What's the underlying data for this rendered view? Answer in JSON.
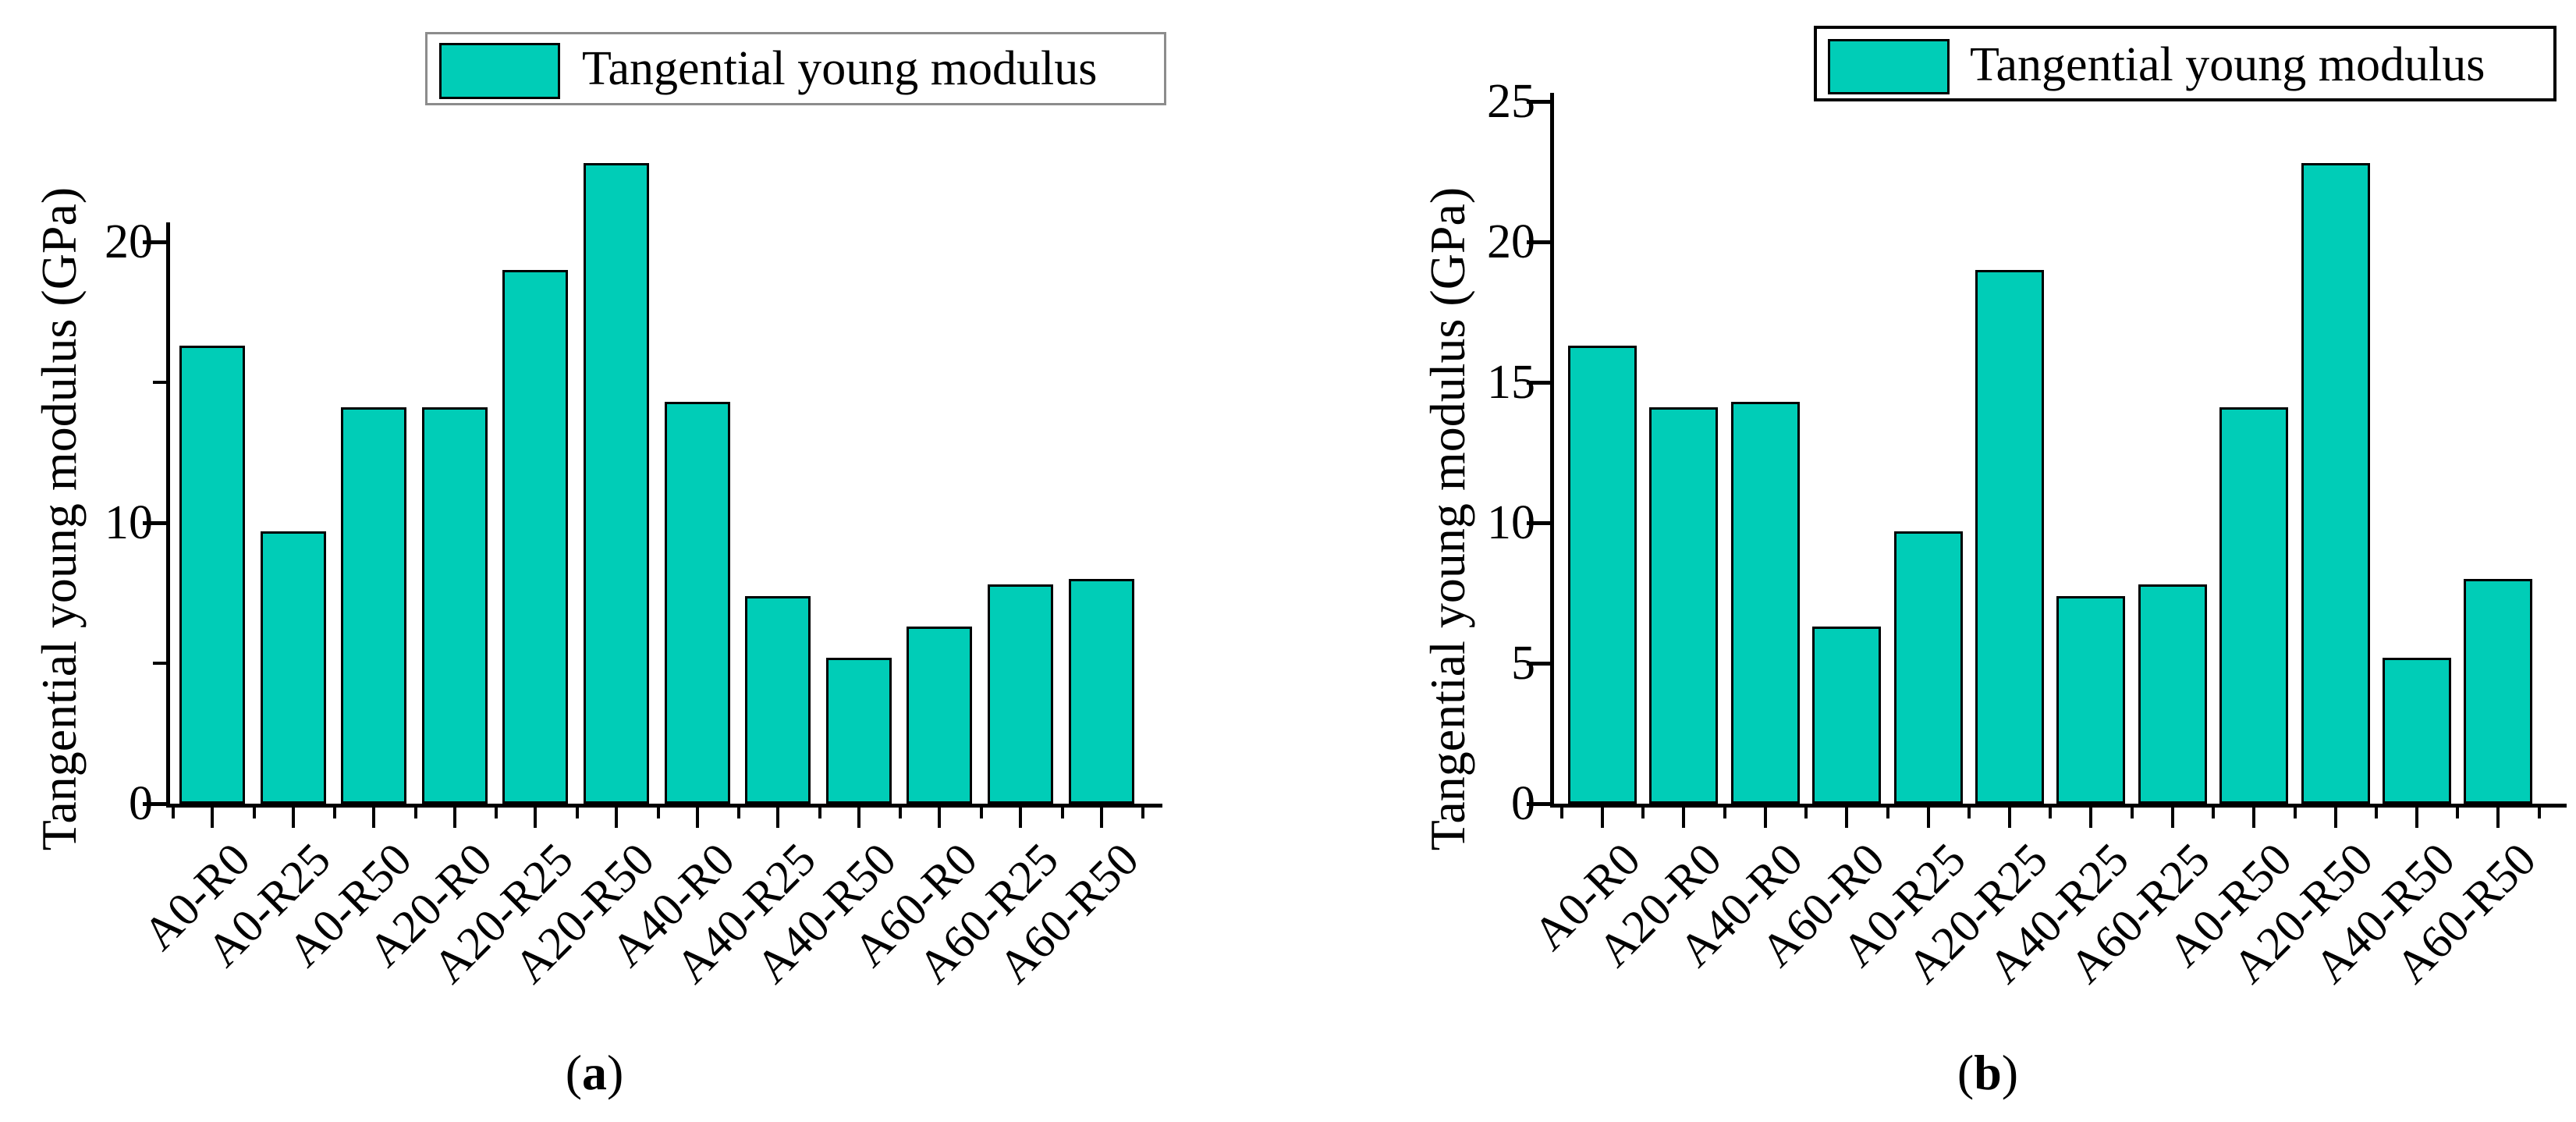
{
  "figure": {
    "background": "#ffffff",
    "colors": {
      "bar_fill": "#00cdb7",
      "bar_stroke": "#000000",
      "text": "#000000",
      "legend_border_a": "#8c8c8c",
      "legend_border_b": "#000000"
    }
  },
  "chart_data": [
    {
      "type": "bar",
      "panel": "a",
      "title": "",
      "xlabel": "",
      "ylabel": "Tangential young modulus (GPa)",
      "legend": [
        "Tangential young modulus"
      ],
      "legend_position": "top",
      "grid": false,
      "categories": [
        "A0-R0",
        "A0-R25",
        "A0-R50",
        "A20-R0",
        "A20-R25",
        "A20-R50",
        "A40-R0",
        "A40-R25",
        "A40-R50",
        "A60-R0",
        "A60-R25",
        "A60-R50"
      ],
      "values": [
        16.3,
        9.7,
        14.1,
        14.1,
        19.0,
        22.8,
        14.3,
        7.4,
        5.2,
        6.3,
        7.8,
        8.0
      ],
      "ylim": [
        0,
        20.7
      ],
      "yticks_labeled": [
        0,
        10,
        20
      ],
      "yticks_minor": [
        5,
        15
      ],
      "caption": {
        "open": "(",
        "letter": "a",
        "close": ")"
      }
    },
    {
      "type": "bar",
      "panel": "b",
      "title": "",
      "xlabel": "",
      "ylabel": "Tangential young modulus (GPa)",
      "legend": [
        "Tangential young modulus"
      ],
      "legend_position": "top",
      "grid": false,
      "categories": [
        "A0-R0",
        "A20-R0",
        "A40-R0",
        "A60-R0",
        "A0-R25",
        "A20-R25",
        "A40-R25",
        "A60-R25",
        "A0-R50",
        "A20-R50",
        "A40-R50",
        "A60-R50"
      ],
      "values": [
        16.3,
        14.1,
        14.3,
        6.3,
        9.7,
        19.0,
        7.4,
        7.8,
        14.1,
        22.8,
        5.2,
        8.0
      ],
      "ylim": [
        0,
        25.3
      ],
      "yticks_labeled": [
        0,
        5,
        10,
        15,
        20,
        25
      ],
      "yticks_minor": [],
      "caption": {
        "open": "(",
        "letter": "b",
        "close": ")"
      }
    }
  ]
}
